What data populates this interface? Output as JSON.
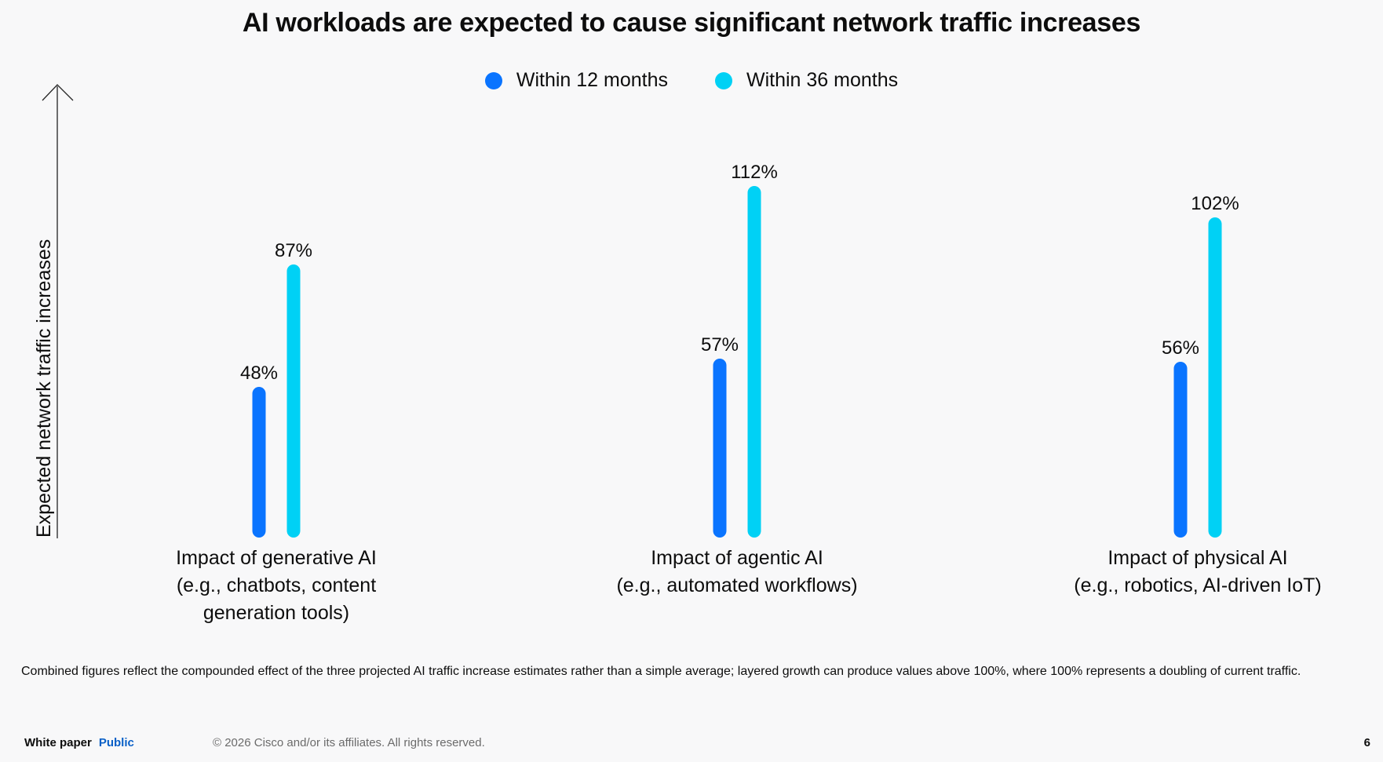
{
  "title": "AI workloads are expected to cause significant network traffic increases",
  "colors": {
    "series1": "#0a74ff",
    "series2": "#00d1f5",
    "axis": "#222222",
    "public": "#0a60c7"
  },
  "footnote": "Combined figures reflect the compounded effect of the three projected AI traffic increase estimates rather than a simple average; layered growth can produce values above 100%, where 100% represents a doubling of current traffic.",
  "footer": {
    "doc_type": "White paper",
    "classification": "Public",
    "copyright": "© 2026  Cisco and/or its affiliates. All rights reserved.",
    "page_number": "6"
  },
  "chart_data": {
    "type": "bar",
    "title": "AI workloads are expected to cause significant network traffic increases",
    "ylabel": "Expected network traffic increases",
    "xlabel": "",
    "ylim": [
      0,
      112
    ],
    "grid": false,
    "legend_position": "top-center",
    "value_suffix": "%",
    "categories": [
      [
        "Impact of generative AI",
        "(e.g., chatbots, content",
        "generation tools)"
      ],
      [
        "Impact of agentic AI",
        "(e.g., automated workflows)"
      ],
      [
        "Impact of physical AI",
        "(e.g., robotics, AI-driven IoT)"
      ]
    ],
    "series": [
      {
        "name": "Within 12 months",
        "values": [
          48,
          57,
          56
        ]
      },
      {
        "name": "Within 36 months",
        "values": [
          87,
          112,
          102
        ]
      }
    ]
  }
}
